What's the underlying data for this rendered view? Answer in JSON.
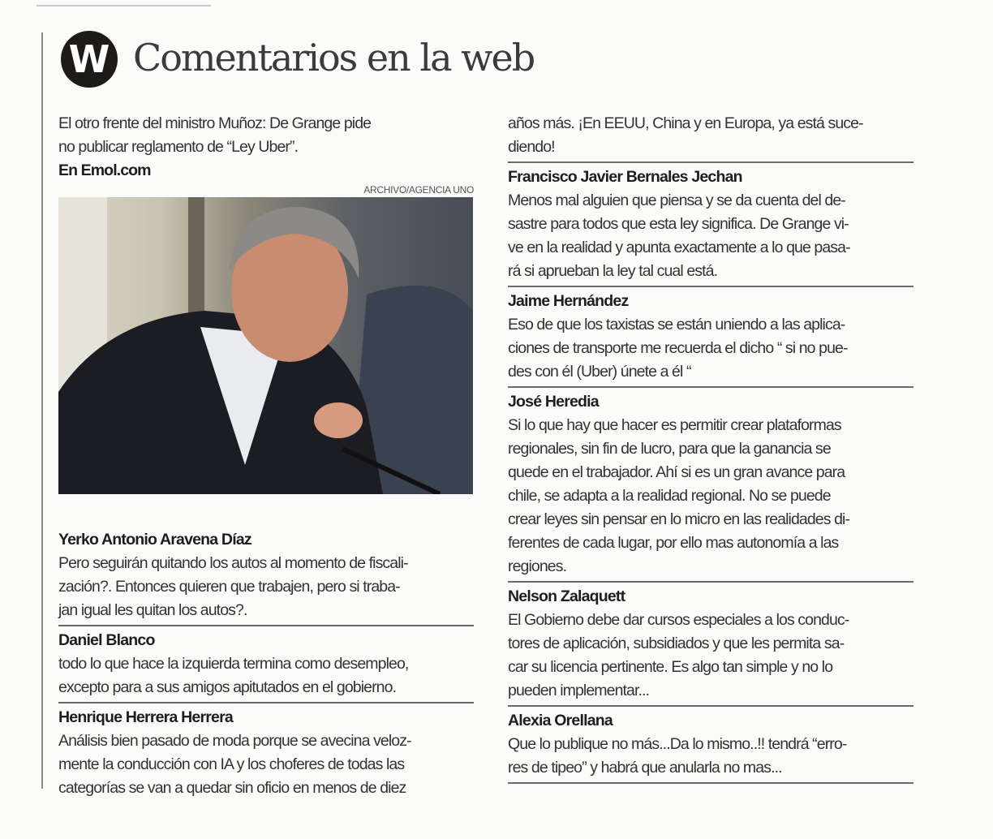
{
  "header": {
    "logo_letter": "W",
    "title": "Comentarios en la web"
  },
  "article": {
    "headline_lines": [
      "El otro frente del ministro Muñoz: De Grange pide",
      "no publicar reglamento de “Ley Uber”."
    ],
    "source": "En Emol.com",
    "photo_credit": "ARCHIVO/AGENCIA UNO"
  },
  "left_comments": [
    {
      "name": "Yerko Antonio Aravena Díaz",
      "lines": [
        "Pero seguirán quitando los autos al momento de fiscali-",
        "zación?. Entonces quieren que trabajen, pero si traba-",
        "jan igual les quitan los autos?."
      ]
    },
    {
      "name": "Daniel Blanco",
      "lines": [
        "todo lo que hace la izquierda termina como desempleo,",
        "excepto para a sus amigos apitutados en el gobierno."
      ]
    },
    {
      "name": "Henrique Herrera Herrera",
      "lines": [
        "Análisis bien pasado de moda porque se avecina veloz-",
        "mente la conducción con IA y los choferes de todas las",
        "categorías se van a quedar sin oficio en menos de diez"
      ],
      "continued": true
    }
  ],
  "right_continuation": [
    "años más. ¡En EEUU, China y en Europa, ya está suce-",
    "diendo!"
  ],
  "right_comments": [
    {
      "name": "Francisco Javier Bernales Jechan",
      "lines": [
        "Menos mal alguien que piensa y se da cuenta del de-",
        "sastre para todos que esta ley significa. De Grange vi-",
        "ve en la realidad y apunta exactamente a lo que pasa-",
        "rá si aprueban la ley tal cual está."
      ]
    },
    {
      "name": "Jaime Hernández",
      "lines": [
        "Eso de que los taxistas se están uniendo a las aplica-",
        "ciones de transporte me recuerda el dicho “ si no pue-",
        "des con él (Uber) únete a él “"
      ]
    },
    {
      "name": "José Heredia",
      "lines": [
        "Si lo que hay que hacer es permitir crear plataformas",
        "regionales, sin fin de lucro, para que la ganancia se",
        "quede en el trabajador. Ahí si es un gran avance para",
        "chile, se adapta a la realidad regional. No se puede",
        "crear leyes sin pensar en lo micro en las realidades di-",
        "ferentes de cada lugar, por ello mas autonomía a las",
        "regiones."
      ]
    },
    {
      "name": "Nelson Zalaquett",
      "lines": [
        "El Gobierno debe dar cursos especiales a los conduc-",
        "tores de aplicación, subsidiados y que les permita sa-",
        "car su licencia pertinente. Es algo tan simple y no lo",
        "pueden implementar..."
      ]
    },
    {
      "name": "Alexia Orellana",
      "lines": [
        "Que lo publique no más...Da lo mismo..!! tendrá “erro-",
        "res de tipeo” y habrá que anularla no mas..."
      ]
    }
  ]
}
